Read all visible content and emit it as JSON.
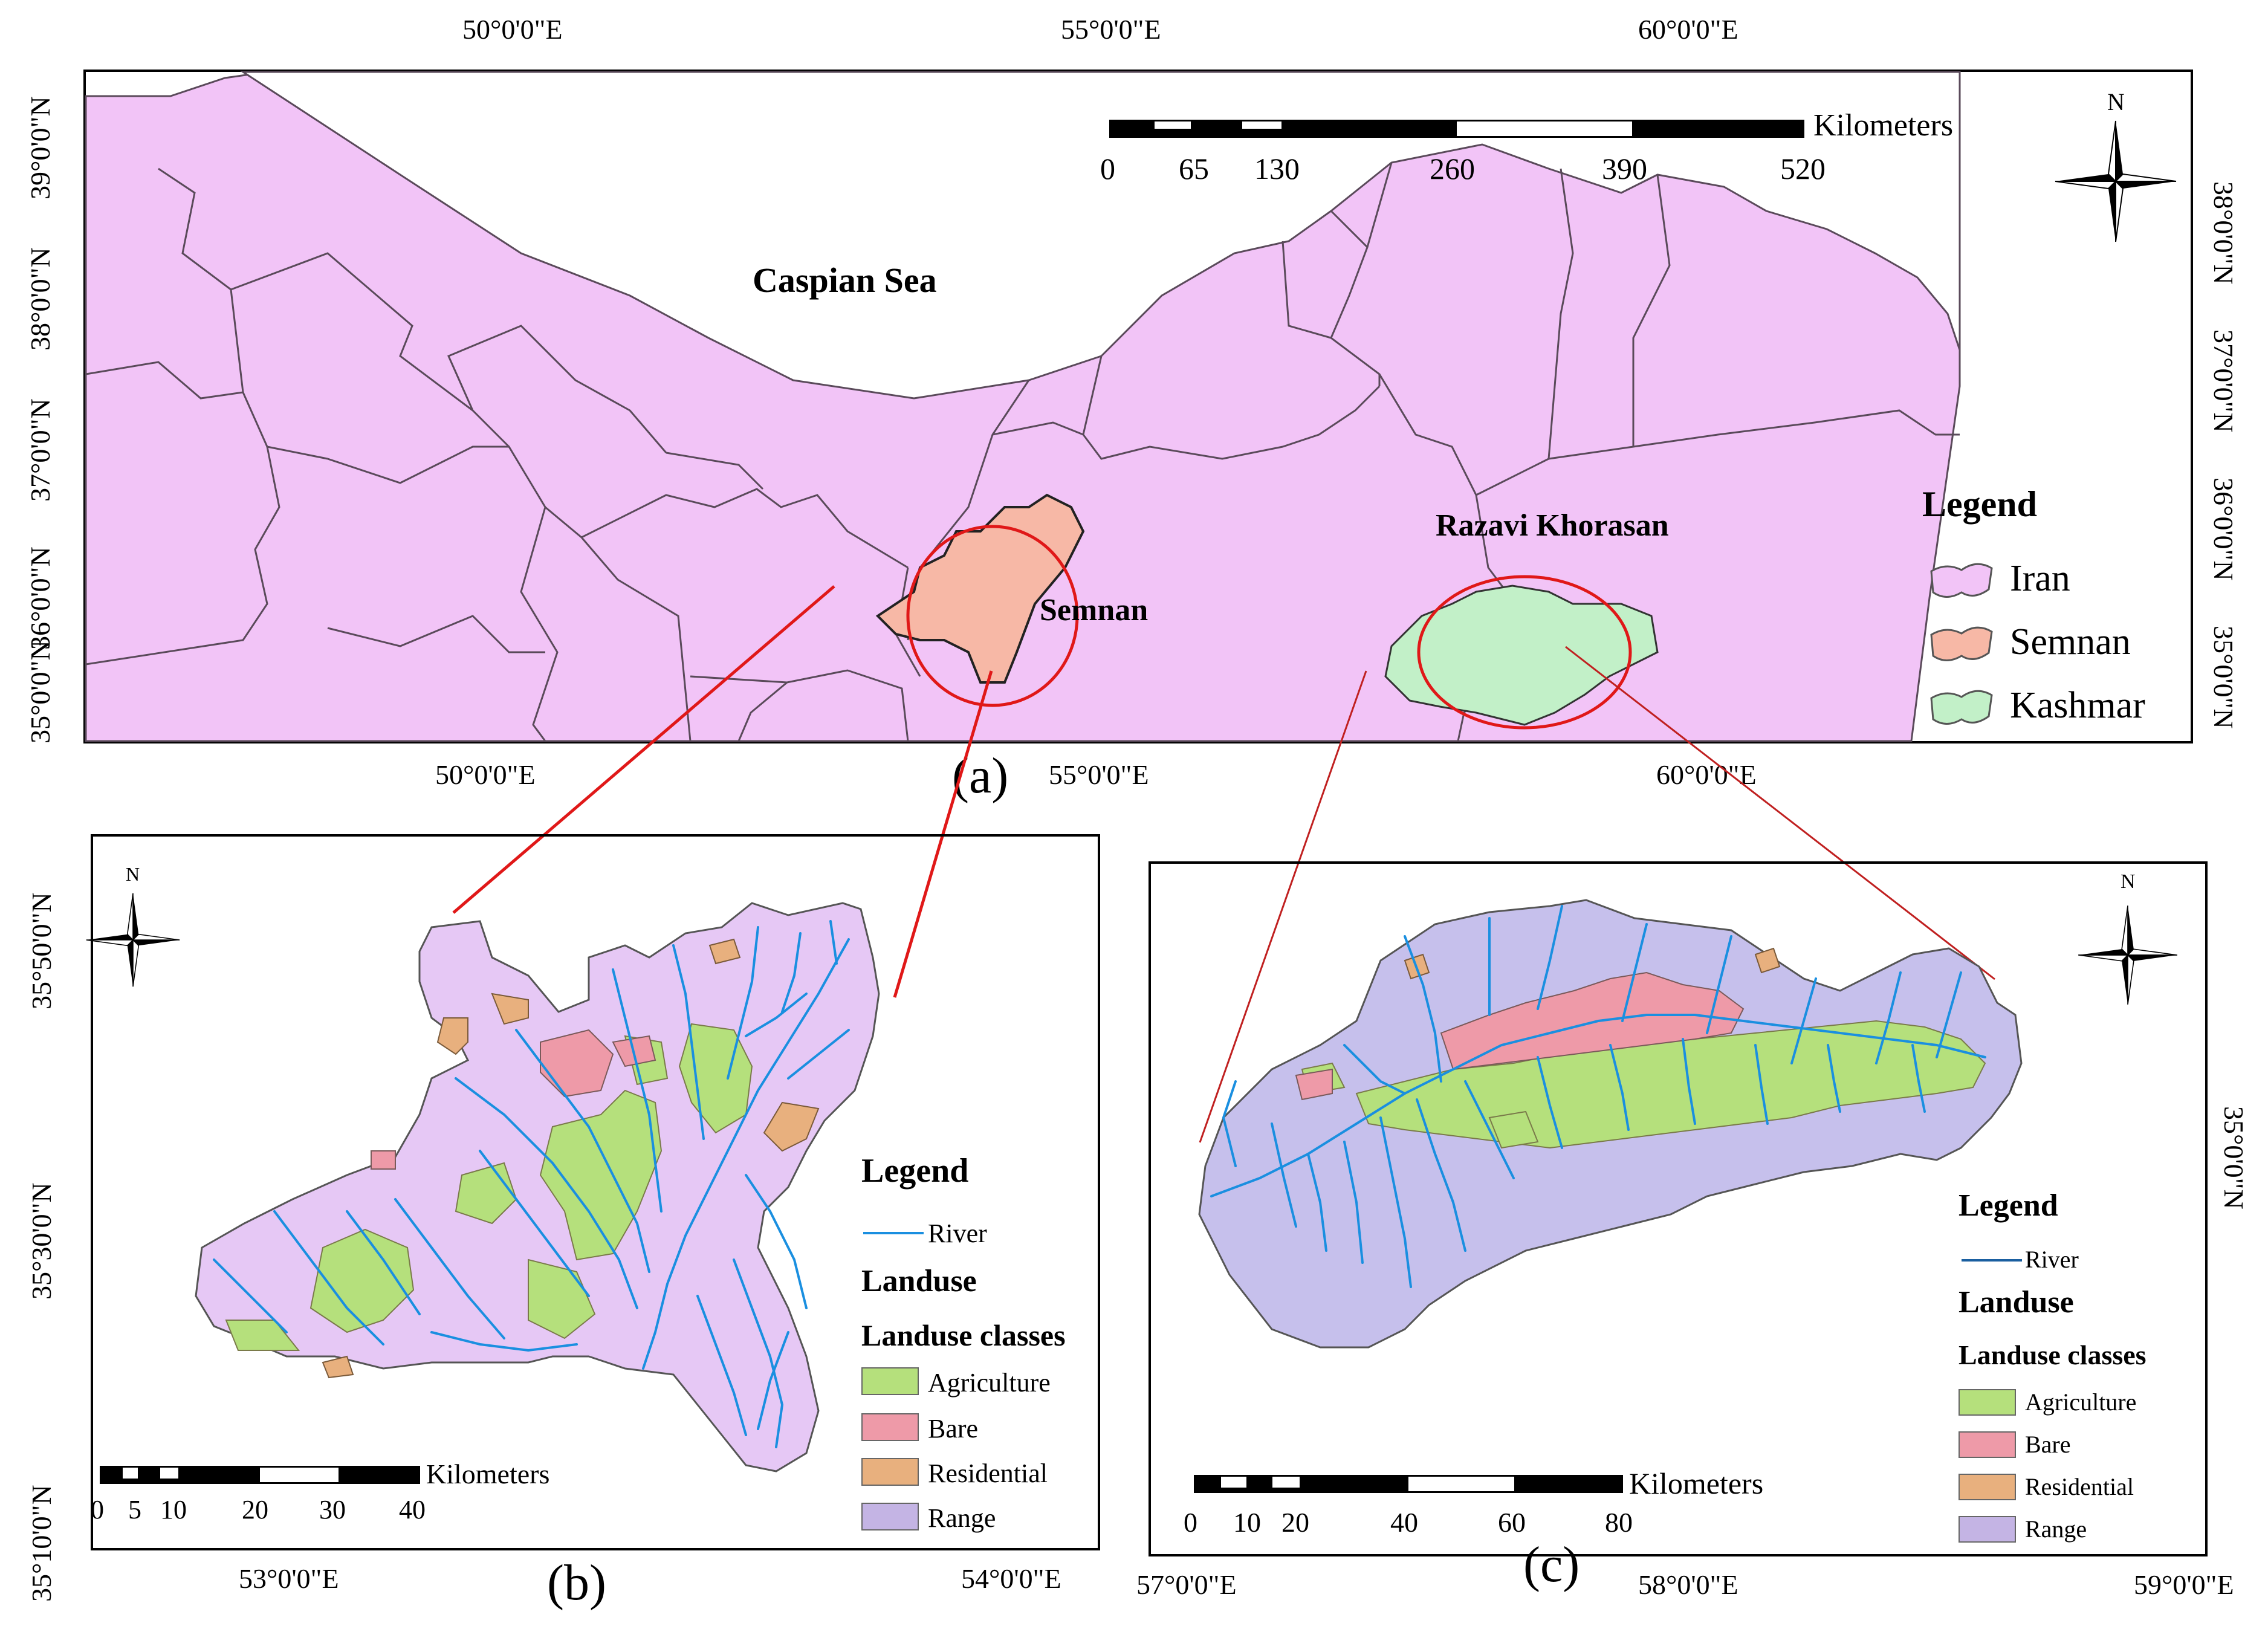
{
  "panel_a": {
    "label": "(a)",
    "top_lon_labels": [
      "50°0'0\"E",
      "55°0'0\"E",
      "60°0'0\"E"
    ],
    "bottom_lon_labels": [
      "50°0'0\"E",
      "55°0'0\"E",
      "60°0'0\"E"
    ],
    "left_lat_labels": [
      "39°0'0\"N",
      "38°0'0\"N",
      "37°0'0\"N",
      "36°0'0\"N",
      "35°0'0\"N"
    ],
    "right_lat_labels": [
      "38°0'0\"N",
      "37°0'0\"N",
      "36°0'0\"N",
      "35°0'0\"N"
    ],
    "place_names": {
      "caspian": "Caspian Sea",
      "semnan": "Semnan",
      "razavi": "Razavi Khorasan"
    },
    "north_label": "N",
    "scalebar": {
      "unit": "Kilometers",
      "ticks": [
        "0",
        "65",
        "130",
        "260",
        "390",
        "520"
      ]
    },
    "legend": {
      "title": "Legend",
      "items": [
        {
          "label": "Iran",
          "color": "#f2c4f7"
        },
        {
          "label": "Semnan",
          "color": "#f7b8a6"
        },
        {
          "label": "Kashmar",
          "color": "#c2f0c8"
        }
      ]
    }
  },
  "panel_b": {
    "label": "(b)",
    "bottom_lon_labels": [
      "53°0'0\"E",
      "54°0'0\"E"
    ],
    "left_lat_labels": [
      "35°50'0\"N",
      "35°30'0\"N",
      "35°10'0\"N"
    ],
    "north_label": "N",
    "scalebar": {
      "unit": "Kilometers",
      "ticks": [
        "0",
        "5",
        "10",
        "20",
        "30",
        "40"
      ]
    },
    "legend": {
      "title": "Legend",
      "river": "River",
      "landuse": "Landuse",
      "classes_title": "Landuse classes",
      "classes": [
        {
          "label": "Agriculture",
          "color": "#b5e07c"
        },
        {
          "label": "Bare",
          "color": "#ee9aa8"
        },
        {
          "label": "Residential",
          "color": "#e8b07e"
        },
        {
          "label": "Range",
          "color": "#c4b4e4"
        }
      ]
    }
  },
  "panel_c": {
    "label": "(c)",
    "bottom_lon_labels": [
      "57°0'0\"E",
      "58°0'0\"E",
      "59°0'0\"E"
    ],
    "right_lat_labels": [
      "35°0'0\"N"
    ],
    "north_label": "N",
    "scalebar": {
      "unit": "Kilometers",
      "ticks": [
        "0",
        "10",
        "20",
        "40",
        "60",
        "80"
      ]
    },
    "legend": {
      "title": "Legend",
      "river": "River",
      "landuse": "Landuse",
      "classes_title": "Landuse classes",
      "classes": [
        {
          "label": "Agriculture",
          "color": "#b5e07c"
        },
        {
          "label": "Bare",
          "color": "#ee9aa8"
        },
        {
          "label": "Residential",
          "color": "#e8b07e"
        },
        {
          "label": "Range",
          "color": "#c4b4e4"
        }
      ]
    }
  },
  "colors": {
    "iran": "#f2c4f7",
    "semnan": "#f7b8a6",
    "kashmar": "#c2f0c8",
    "range_b": "#e6c8f5",
    "range_c": "#c6c0ec",
    "agriculture": "#b5e07c",
    "bare": "#ee9aa8",
    "residential": "#e8b07e",
    "river": "#1a8fe0",
    "callout": "#e01818"
  }
}
